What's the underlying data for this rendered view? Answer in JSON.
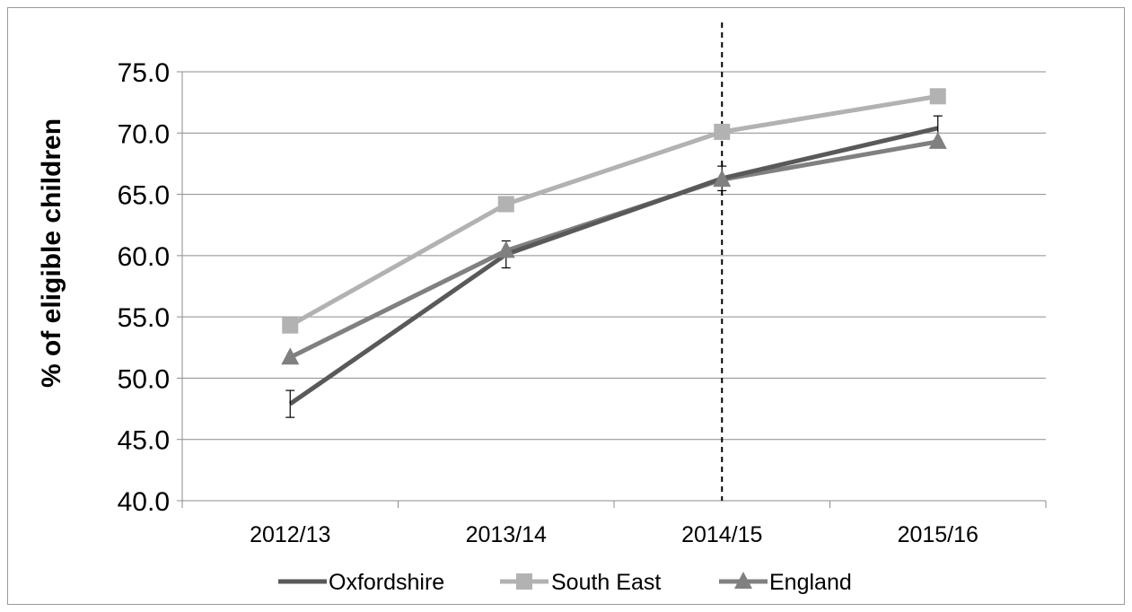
{
  "chart_data": {
    "type": "line",
    "categories": [
      "2012/13",
      "2013/14",
      "2014/15",
      "2015/16"
    ],
    "series": [
      {
        "name": "Oxfordshire",
        "values": [
          47.9,
          60.1,
          66.3,
          70.4
        ],
        "error": [
          1.1,
          1.1,
          1.0,
          1.0
        ],
        "color": "#595959",
        "marker": "none"
      },
      {
        "name": "South East",
        "values": [
          54.3,
          64.2,
          70.1,
          73.0
        ],
        "color": "#b2b2b2",
        "marker": "square"
      },
      {
        "name": "England",
        "values": [
          51.7,
          60.4,
          66.2,
          69.3
        ],
        "color": "#808080",
        "marker": "triangle"
      }
    ],
    "ylabel": "% of eligible children",
    "xlabel": "",
    "ylim": [
      40.0,
      75.0
    ],
    "yticks": [
      "40.0",
      "45.0",
      "50.0",
      "55.0",
      "60.0",
      "65.0",
      "70.0",
      "75.0"
    ],
    "grid": true,
    "reference_line": {
      "at_category": "2014/15",
      "style": "dashed"
    },
    "legend_position": "bottom"
  }
}
